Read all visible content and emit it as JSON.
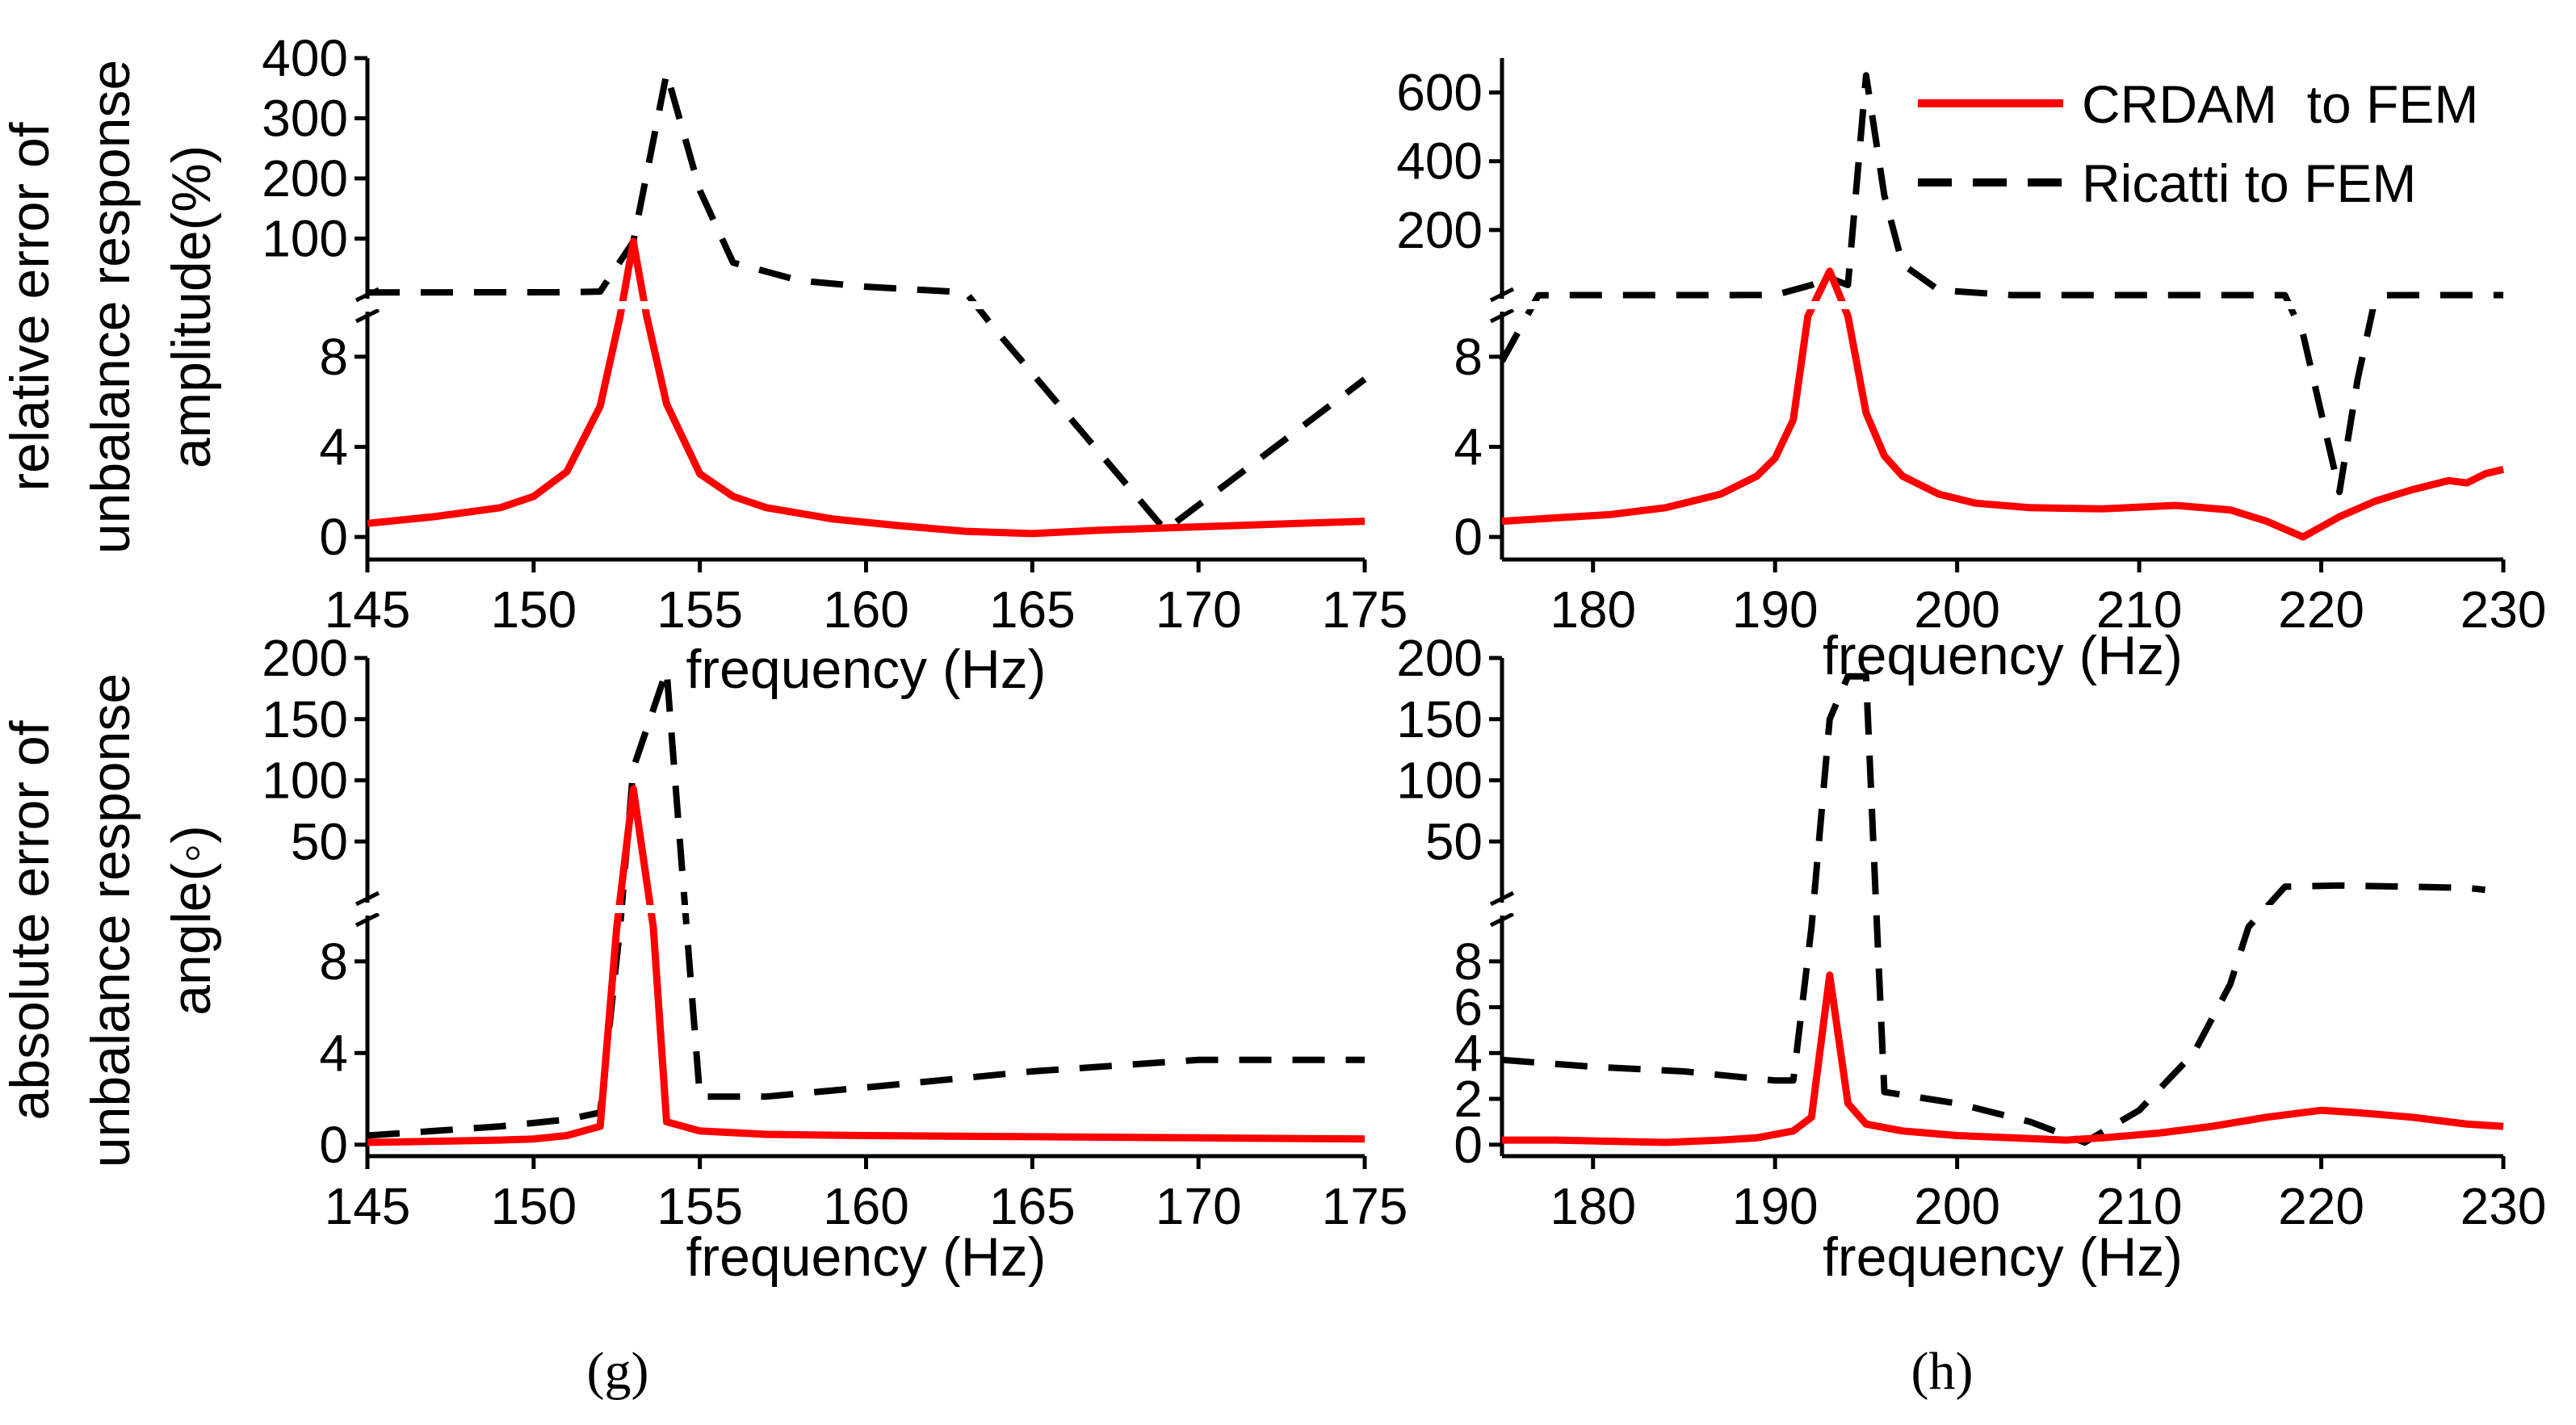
{
  "figure": {
    "ylabel_top": [
      "relative error of",
      "unbalance response",
      "amplitude(%)"
    ],
    "ylabel_bottom": [
      "absolute error of",
      "unbalance response",
      "angle(◦)"
    ],
    "legend": [
      {
        "label": "CRDAM  to FEM",
        "color": "#ff0000",
        "dash": "solid"
      },
      {
        "label": "Ricatti to FEM",
        "color": "#000000",
        "dash": "dashed"
      }
    ],
    "panel_labels": {
      "left": "(g)",
      "right": "(h)"
    }
  },
  "chart_data": [
    {
      "id": "g-top",
      "type": "line",
      "xlabel": "frequency (Hz)",
      "xlim": [
        145,
        175
      ],
      "xticks": [
        145,
        150,
        155,
        160,
        165,
        170,
        175
      ],
      "y_broken": true,
      "ylim_lower": [
        -1,
        10
      ],
      "ylim_upper": [
        0,
        400
      ],
      "yticks_lower": [
        0,
        4,
        8
      ],
      "yticks_upper": [
        100,
        200,
        300,
        400
      ],
      "series": [
        {
          "name": "CRDAM  to FEM",
          "color": "#ff0000",
          "dash": "solid",
          "points": [
            [
              145,
              0.6
            ],
            [
              147,
              0.9
            ],
            [
              149,
              1.3
            ],
            [
              150,
              1.8
            ],
            [
              151,
              2.9
            ],
            [
              152,
              5.8
            ],
            [
              152.6,
              9.8
            ],
            [
              153,
              95
            ],
            [
              153.4,
              9.8
            ],
            [
              154,
              5.9
            ],
            [
              155,
              2.8
            ],
            [
              156,
              1.8
            ],
            [
              157,
              1.3
            ],
            [
              159,
              0.8
            ],
            [
              161,
              0.5
            ],
            [
              163,
              0.25
            ],
            [
              165,
              0.15
            ],
            [
              167,
              0.3
            ],
            [
              169,
              0.4
            ],
            [
              171,
              0.5
            ],
            [
              173,
              0.6
            ],
            [
              175,
              0.7
            ]
          ]
        },
        {
          "name": "Ricatti to FEM",
          "color": "#000000",
          "dash": "dashed",
          "points": [
            [
              145,
              10.5
            ],
            [
              147,
              10.6
            ],
            [
              149,
              10.7
            ],
            [
              151,
              10.8
            ],
            [
              152,
              12
            ],
            [
              153,
              95
            ],
            [
              154,
              375
            ],
            [
              155,
              180
            ],
            [
              156,
              60
            ],
            [
              158,
              30
            ],
            [
              160,
              20
            ],
            [
              163,
              10.5
            ],
            [
              164,
              9.0
            ],
            [
              169,
              0.3
            ],
            [
              175,
              7.0
            ]
          ]
        }
      ]
    },
    {
      "id": "h-top",
      "type": "line",
      "xlabel": "frequency (Hz)",
      "xlim": [
        175,
        230
      ],
      "xticks": [
        180,
        190,
        200,
        210,
        220,
        230
      ],
      "y_broken": true,
      "ylim_lower": [
        -1,
        10
      ],
      "ylim_upper": [
        0,
        700
      ],
      "yticks_lower": [
        0,
        4,
        8
      ],
      "yticks_upper": [
        200,
        400,
        600
      ],
      "series": [
        {
          "name": "CRDAM  to FEM",
          "color": "#ff0000",
          "dash": "solid",
          "points": [
            [
              175,
              0.7
            ],
            [
              178,
              0.85
            ],
            [
              181,
              1.0
            ],
            [
              184,
              1.3
            ],
            [
              187,
              1.9
            ],
            [
              189,
              2.7
            ],
            [
              190,
              3.5
            ],
            [
              191,
              5.2
            ],
            [
              191.8,
              9.8
            ],
            [
              193,
              80
            ],
            [
              194,
              9.8
            ],
            [
              195,
              5.5
            ],
            [
              196,
              3.6
            ],
            [
              197,
              2.7
            ],
            [
              199,
              1.9
            ],
            [
              201,
              1.5
            ],
            [
              204,
              1.3
            ],
            [
              208,
              1.25
            ],
            [
              212,
              1.4
            ],
            [
              215,
              1.2
            ],
            [
              217,
              0.7
            ],
            [
              219,
              0.0
            ],
            [
              221,
              0.9
            ],
            [
              223,
              1.6
            ],
            [
              225,
              2.1
            ],
            [
              227,
              2.5
            ],
            [
              228,
              2.4
            ],
            [
              229,
              2.8
            ],
            [
              230,
              3.0
            ]
          ]
        },
        {
          "name": "Ricatti to FEM",
          "color": "#000000",
          "dash": "dashed",
          "points": [
            [
              175,
              7.8
            ],
            [
              177,
              10.2
            ],
            [
              178,
              10.5
            ],
            [
              185,
              10.6
            ],
            [
              190,
              10.7
            ],
            [
              192,
              40
            ],
            [
              193,
              60
            ],
            [
              194,
              40
            ],
            [
              195,
              650
            ],
            [
              196,
              300
            ],
            [
              197,
              100
            ],
            [
              199,
              25
            ],
            [
              203,
              10.5
            ],
            [
              215,
              10.5
            ],
            [
              218,
              10.4
            ],
            [
              219,
              9.0
            ],
            [
              221,
              2.0
            ],
            [
              222,
              7.0
            ],
            [
              223,
              10.2
            ],
            [
              226,
              10.5
            ],
            [
              230,
              10.6
            ]
          ]
        }
      ]
    },
    {
      "id": "g-bottom",
      "type": "line",
      "xlabel": "frequency (Hz)",
      "xlim": [
        145,
        175
      ],
      "xticks": [
        145,
        150,
        155,
        160,
        165,
        170,
        175
      ],
      "y_broken": true,
      "ylim_lower": [
        -0.5,
        10
      ],
      "ylim_upper": [
        0,
        200
      ],
      "yticks_lower": [
        0,
        4,
        8
      ],
      "yticks_upper": [
        50,
        100,
        150,
        200
      ],
      "series": [
        {
          "name": "CRDAM  to FEM",
          "color": "#ff0000",
          "dash": "solid",
          "points": [
            [
              145,
              0.1
            ],
            [
              147,
              0.15
            ],
            [
              149,
              0.2
            ],
            [
              150,
              0.25
            ],
            [
              151,
              0.4
            ],
            [
              152,
              0.8
            ],
            [
              152.5,
              9.5
            ],
            [
              153,
              93
            ],
            [
              153.6,
              9.5
            ],
            [
              154,
              1.0
            ],
            [
              155,
              0.6
            ],
            [
              157,
              0.45
            ],
            [
              160,
              0.4
            ],
            [
              165,
              0.35
            ],
            [
              170,
              0.3
            ],
            [
              175,
              0.25
            ]
          ]
        },
        {
          "name": "Ricatti to FEM",
          "color": "#000000",
          "dash": "dashed",
          "points": [
            [
              145,
              0.4
            ],
            [
              147,
              0.6
            ],
            [
              149,
              0.8
            ],
            [
              151,
              1.1
            ],
            [
              152,
              1.4
            ],
            [
              152.6,
              9.5
            ],
            [
              153,
              110
            ],
            [
              154,
              190
            ],
            [
              154.6,
              9.5
            ],
            [
              155,
              2.1
            ],
            [
              157,
              2.1
            ],
            [
              160,
              2.5
            ],
            [
              165,
              3.2
            ],
            [
              170,
              3.7
            ],
            [
              175,
              3.7
            ]
          ]
        }
      ]
    },
    {
      "id": "h-bottom",
      "type": "line",
      "xlabel": "frequency (Hz)",
      "xlim": [
        175,
        230
      ],
      "xticks": [
        180,
        190,
        200,
        210,
        220,
        230
      ],
      "y_broken": true,
      "ylim_lower": [
        -0.5,
        10
      ],
      "ylim_upper": [
        0,
        200
      ],
      "yticks_lower": [
        0,
        2,
        4,
        6,
        8
      ],
      "yticks_upper": [
        50,
        100,
        150,
        200
      ],
      "series": [
        {
          "name": "CRDAM  to FEM",
          "color": "#ff0000",
          "dash": "solid",
          "points": [
            [
              175,
              0.2
            ],
            [
              178,
              0.2
            ],
            [
              181,
              0.15
            ],
            [
              184,
              0.1
            ],
            [
              187,
              0.2
            ],
            [
              189,
              0.3
            ],
            [
              191,
              0.6
            ],
            [
              192,
              1.2
            ],
            [
              193,
              7.4
            ],
            [
              194,
              1.8
            ],
            [
              195,
              0.9
            ],
            [
              197,
              0.6
            ],
            [
              200,
              0.4
            ],
            [
              203,
              0.3
            ],
            [
              206,
              0.2
            ],
            [
              208,
              0.3
            ],
            [
              211,
              0.5
            ],
            [
              214,
              0.8
            ],
            [
              217,
              1.2
            ],
            [
              220,
              1.5
            ],
            [
              222,
              1.4
            ],
            [
              225,
              1.2
            ],
            [
              228,
              0.9
            ],
            [
              230,
              0.8
            ]
          ]
        },
        {
          "name": "Ricatti to FEM",
          "color": "#000000",
          "dash": "dashed",
          "points": [
            [
              175,
              3.7
            ],
            [
              180,
              3.4
            ],
            [
              185,
              3.2
            ],
            [
              190,
              2.8
            ],
            [
              191,
              2.8
            ],
            [
              192,
              9.5
            ],
            [
              193,
              150
            ],
            [
              194,
              185
            ],
            [
              195,
              185
            ],
            [
              195.6,
              9.5
            ],
            [
              196,
              2.3
            ],
            [
              200,
              1.8
            ],
            [
              204,
              1.0
            ],
            [
              207,
              0.1
            ],
            [
              210,
              1.5
            ],
            [
              213,
              4.0
            ],
            [
              215,
              7.0
            ],
            [
              216,
              9.5
            ],
            [
              218,
              13
            ],
            [
              221,
              14
            ],
            [
              225,
              13
            ],
            [
              228,
              12
            ],
            [
              229,
              10.5
            ]
          ]
        }
      ]
    }
  ]
}
